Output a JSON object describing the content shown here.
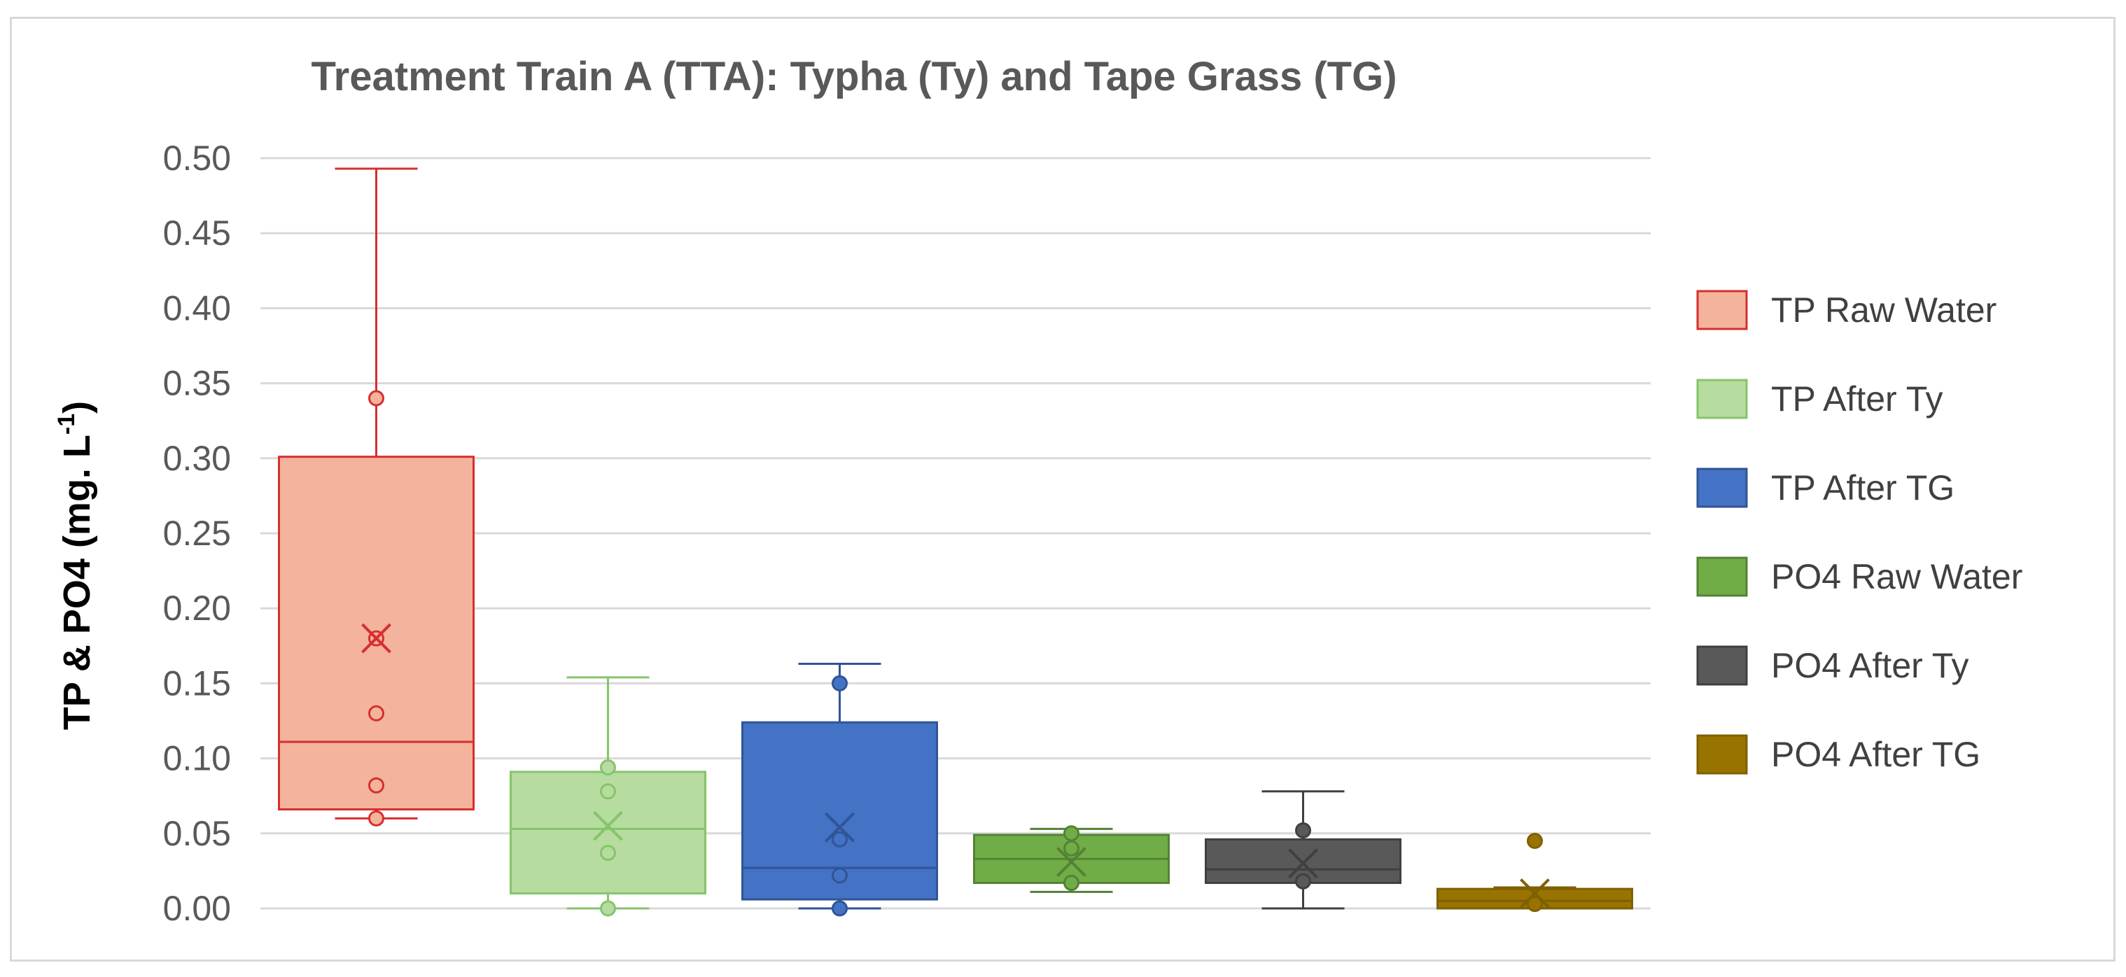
{
  "chart_data": {
    "type": "box",
    "title": "Treatment Train A (TTA): Typha (Ty) and Tape Grass (TG)",
    "xlabel": "",
    "ylabel_main": "TP & PO4 (mg. L",
    "ylabel_sup": "-1",
    "ylabel_close": ")",
    "ylim": [
      0,
      0.5
    ],
    "yticks": [
      "0.50",
      "0.45",
      "0.40",
      "0.35",
      "0.30",
      "0.25",
      "0.20",
      "0.15",
      "0.10",
      "0.05",
      "0.00"
    ],
    "ytick_values": [
      0.5,
      0.45,
      0.4,
      0.35,
      0.3,
      0.25,
      0.2,
      0.15,
      0.1,
      0.05,
      0.0
    ],
    "grid": true,
    "legend_position": "right",
    "series": [
      {
        "name": "TP Raw Water",
        "fill": "#f4b39c",
        "stroke": "#d62f2f",
        "min": 0.06,
        "q1": 0.066,
        "median": 0.111,
        "q3": 0.301,
        "max": 0.493,
        "mean": 0.18,
        "points": [
          0.34,
          0.18,
          0.13,
          0.082,
          0.06
        ]
      },
      {
        "name": "TP After Ty",
        "fill": "#b6dca0",
        "stroke": "#86c46a",
        "min": 0.0,
        "q1": 0.01,
        "median": 0.053,
        "q3": 0.091,
        "max": 0.154,
        "mean": 0.055,
        "points": [
          0.094,
          0.078,
          0.037,
          0.0
        ]
      },
      {
        "name": "TP After TG",
        "fill": "#4472c4",
        "stroke": "#2f5597",
        "min": 0.0,
        "q1": 0.006,
        "median": 0.027,
        "q3": 0.124,
        "max": 0.163,
        "mean": 0.054,
        "points": [
          0.15,
          0.046,
          0.022,
          0.0
        ]
      },
      {
        "name": "PO4 Raw Water",
        "fill": "#70ad47",
        "stroke": "#548235",
        "min": 0.011,
        "q1": 0.017,
        "median": 0.033,
        "q3": 0.049,
        "max": 0.053,
        "mean": 0.031,
        "points": [
          0.05,
          0.04,
          0.017
        ]
      },
      {
        "name": "PO4 After Ty",
        "fill": "#595959",
        "stroke": "#404040",
        "min": 0.0,
        "q1": 0.017,
        "median": 0.026,
        "q3": 0.046,
        "max": 0.078,
        "mean": 0.03,
        "points": [
          0.052,
          0.018
        ]
      },
      {
        "name": "PO4 After TG",
        "fill": "#997300",
        "stroke": "#7f6000",
        "min": 0.0,
        "q1": 0.0,
        "median": 0.005,
        "q3": 0.013,
        "max": 0.014,
        "mean": 0.01,
        "points": [
          0.045,
          0.003
        ]
      }
    ]
  }
}
